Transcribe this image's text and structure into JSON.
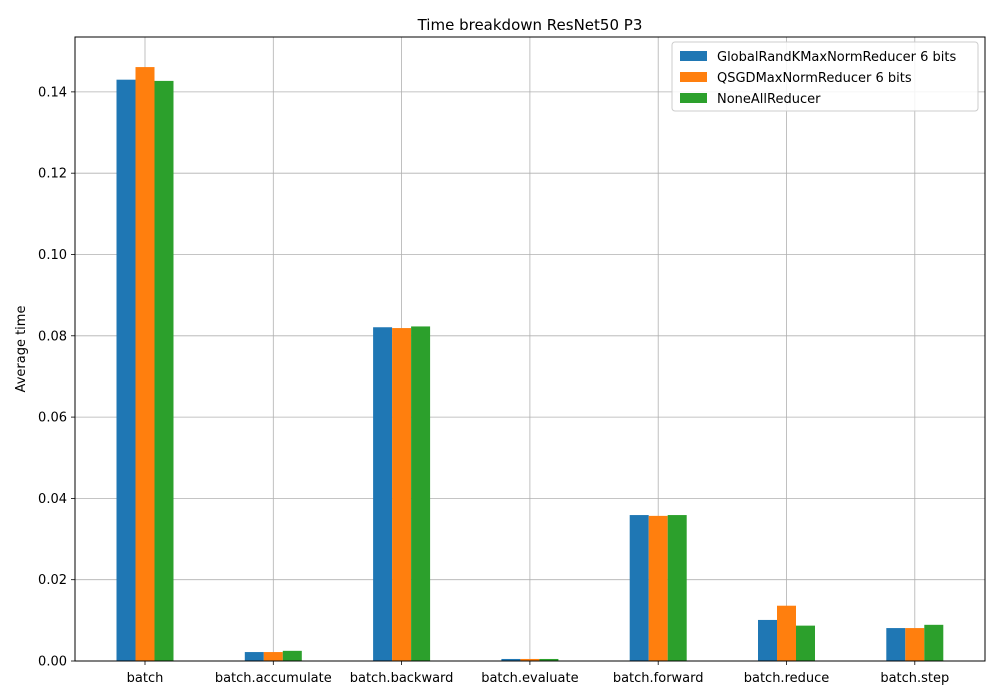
{
  "chart_data": {
    "type": "bar",
    "title": "Time breakdown ResNet50 P3",
    "xlabel": "",
    "ylabel": "Average time",
    "ylim": [
      0,
      0.1535
    ],
    "yticks": [
      "0.00",
      "0.02",
      "0.04",
      "0.06",
      "0.08",
      "0.10",
      "0.12",
      "0.14"
    ],
    "categories": [
      "batch",
      "batch.accumulate",
      "batch.backward",
      "batch.evaluate",
      "batch.forward",
      "batch.reduce",
      "batch.step"
    ],
    "grid": true,
    "legend_position": "top-right",
    "series": [
      {
        "name": "GlobalRandKMaxNormReducer 6 bits",
        "color": "#1f77b4",
        "values": [
          0.143,
          0.0022,
          0.0821,
          0.0005,
          0.0359,
          0.0101,
          0.0081
        ]
      },
      {
        "name": "QSGDMaxNormReducer 6 bits",
        "color": "#ff7f0e",
        "values": [
          0.1461,
          0.0022,
          0.0819,
          0.0005,
          0.0357,
          0.0136,
          0.0081
        ]
      },
      {
        "name": "NoneAllReducer",
        "color": "#2ca02c",
        "values": [
          0.1427,
          0.0025,
          0.0823,
          0.0005,
          0.0359,
          0.0087,
          0.0089
        ]
      }
    ]
  }
}
